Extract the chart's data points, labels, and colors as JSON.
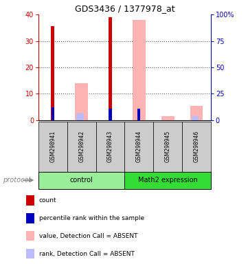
{
  "title": "GDS3436 / 1377978_at",
  "samples": [
    "GSM298941",
    "GSM298942",
    "GSM298943",
    "GSM298944",
    "GSM298945",
    "GSM298946"
  ],
  "groups": [
    {
      "name": "control",
      "color": "#99ee99",
      "samples": [
        0,
        1,
        2
      ]
    },
    {
      "name": "Math2 expression",
      "color": "#33dd33",
      "samples": [
        3,
        4,
        5
      ]
    }
  ],
  "count_values": [
    35.5,
    0,
    39,
    0,
    0,
    0
  ],
  "percentile_values": [
    12,
    0,
    11,
    11,
    0,
    0
  ],
  "absent_value_values": [
    0,
    14,
    0,
    38,
    1.5,
    5.5
  ],
  "absent_rank_values": [
    0,
    6.5,
    0,
    0,
    0,
    3.5
  ],
  "ylim_left": [
    0,
    40
  ],
  "ylim_right": [
    0,
    100
  ],
  "yticks_left": [
    0,
    10,
    20,
    30,
    40
  ],
  "yticks_right": [
    0,
    25,
    50,
    75,
    100
  ],
  "ytick_labels_right": [
    "0",
    "25",
    "50",
    "75",
    "100%"
  ],
  "count_color": "#cc0000",
  "percentile_color": "#0000bb",
  "absent_value_color": "#ffb3b3",
  "absent_rank_color": "#bbbbff",
  "background_color": "#ffffff",
  "grid_color": "#555555",
  "label_area_color": "#cccccc",
  "protocol_label": "protocol",
  "legend_items": [
    {
      "label": "count",
      "color": "#cc0000"
    },
    {
      "label": "percentile rank within the sample",
      "color": "#0000bb"
    },
    {
      "label": "value, Detection Call = ABSENT",
      "color": "#ffb3b3"
    },
    {
      "label": "rank, Detection Call = ABSENT",
      "color": "#bbbbff"
    }
  ]
}
